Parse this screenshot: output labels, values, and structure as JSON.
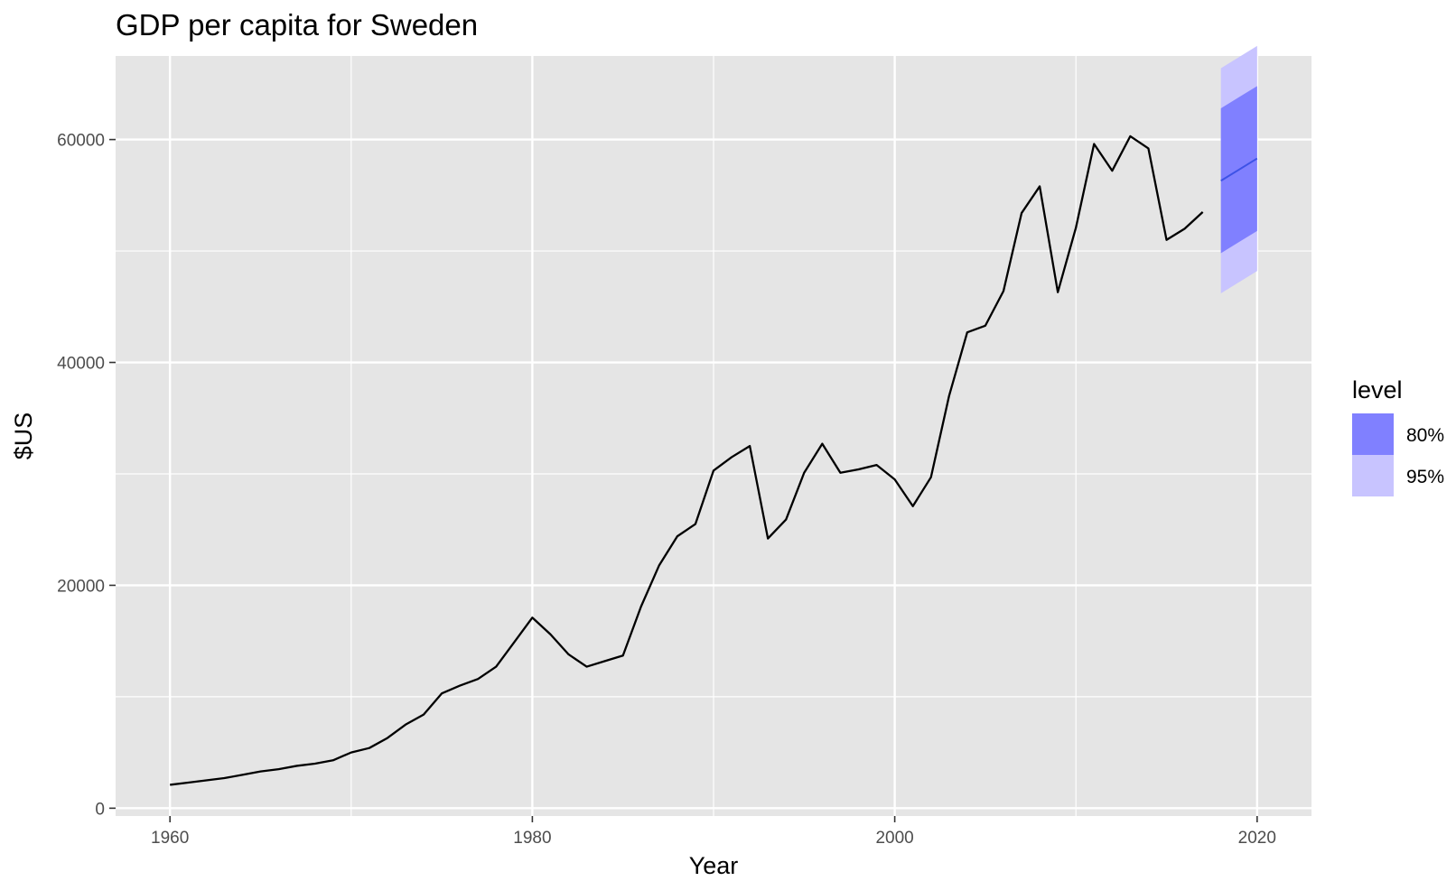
{
  "chart_data": {
    "type": "line",
    "title": "GDP per capita for Sweden",
    "xlabel": "Year",
    "ylabel": "$US",
    "xlim": [
      1957,
      2023
    ],
    "ylim": [
      -700,
      67500
    ],
    "x_ticks": [
      1960,
      1980,
      2000,
      2020
    ],
    "x_tick_labels": [
      "1960",
      "1980",
      "2000",
      "2020"
    ],
    "y_ticks": [
      0,
      20000,
      40000,
      60000
    ],
    "y_tick_labels": [
      "0",
      "20000",
      "40000",
      "60000"
    ],
    "grid": true,
    "legend": {
      "title": "level",
      "placement": "right",
      "entries": [
        {
          "label": "80%",
          "color": "#8080ff"
        },
        {
          "label": "95%",
          "color": "#c8c4ff"
        }
      ]
    },
    "colors": {
      "panel": "#e5e5e5",
      "grid": "#ffffff",
      "history_line": "#000000",
      "forecast_line": "#3d52e6",
      "band_80": "#8080ff",
      "band_95": "#c8c4ff"
    },
    "series": [
      {
        "x": [
          1960,
          1961,
          1962,
          1963,
          1964,
          1965,
          1966,
          1967,
          1968,
          1969,
          1970,
          1971,
          1972,
          1973,
          1974,
          1975,
          1976,
          1977,
          1978,
          1979,
          1980,
          1981,
          1982,
          1983,
          1984,
          1985,
          1986,
          1987,
          1988,
          1989,
          1990,
          1991,
          1992,
          1993,
          1994,
          1995,
          1996,
          1997,
          1998,
          1999,
          2000,
          2001,
          2002,
          2003,
          2004,
          2005,
          2006,
          2007,
          2008,
          2009,
          2010,
          2011,
          2012,
          2013,
          2014,
          2015,
          2016,
          2017
        ],
        "values": [
          2100,
          2300,
          2500,
          2700,
          3000,
          3300,
          3500,
          3800,
          4000,
          4300,
          5000,
          5400,
          6300,
          7500,
          8400,
          10300,
          11000,
          11600,
          12700,
          14900,
          17100,
          15600,
          13800,
          12700,
          13200,
          13700,
          18100,
          21800,
          24400,
          25500,
          30300,
          31500,
          32500,
          24200,
          25900,
          30100,
          32700,
          30100,
          30400,
          30800,
          29500,
          27100,
          29700,
          37000,
          42700,
          43300,
          46400,
          53400,
          55800,
          46300,
          52100,
          59600,
          57200,
          60300,
          59200,
          51000,
          52000,
          53500
        ]
      }
    ],
    "forecast": {
      "x": [
        2018,
        2019,
        2020
      ],
      "mean": [
        56300,
        57300,
        58300
      ],
      "lower_80": [
        49800,
        50800,
        51800
      ],
      "upper_80": [
        62800,
        63800,
        64800
      ],
      "lower_95": [
        46200,
        47200,
        48200
      ],
      "upper_95": [
        66400,
        67400,
        68400
      ]
    }
  }
}
